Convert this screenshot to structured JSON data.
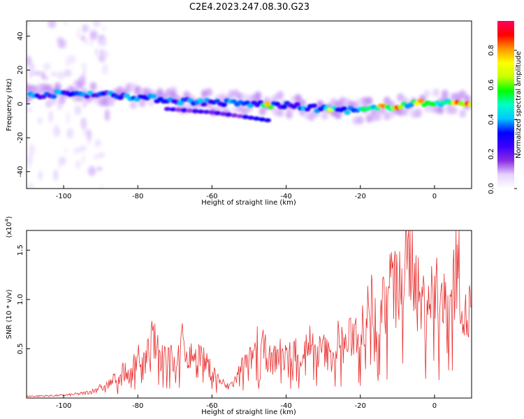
{
  "title": "C2E4.2023.247.08.30.G23",
  "chart_data": [
    {
      "type": "heatmap",
      "xlabel": "Height of straight line (km)",
      "ylabel": "Frequency (Hz)",
      "xlim": [
        -110,
        10
      ],
      "ylim": [
        -50,
        49
      ],
      "x_ticks": [
        -100,
        -80,
        -60,
        -40,
        -20,
        0
      ],
      "y_ticks": [
        -40,
        -20,
        0,
        20,
        40
      ],
      "colorbar": {
        "label": "Normalized spectral amplitude",
        "range": [
          0,
          0.97
        ],
        "ticks": [
          "0.0",
          "0.2",
          "0.4",
          "0.6",
          "0.8"
        ],
        "colormap": [
          "#ffffff",
          "#e6d2ff",
          "#8a2be2",
          "#3c00ff",
          "#0000ff",
          "#00c8ff",
          "#00ffc8",
          "#00ff00",
          "#c8ff00",
          "#ffff00",
          "#ff9600",
          "#ff0000",
          "#ff0060"
        ]
      },
      "ridge_center": {
        "x": [
          -110,
          -100,
          -90,
          -80,
          -70,
          -60,
          -50,
          -40,
          -30,
          -20,
          -10,
          0,
          10
        ],
        "y": [
          5,
          6,
          6,
          4,
          2,
          1,
          0,
          -1,
          -3,
          -4,
          -1,
          1,
          0
        ]
      },
      "ridge_intensity_peaks": [
        {
          "x": -45,
          "y": -2,
          "value": 0.8
        },
        {
          "x": -28,
          "y": -4,
          "value": 0.7
        },
        {
          "x": -14,
          "y": -1,
          "value": 0.95
        },
        {
          "x": -10,
          "y": 0,
          "value": 0.9
        },
        {
          "x": -4,
          "y": 1,
          "value": 0.9
        },
        {
          "x": 6,
          "y": 0,
          "value": 0.97
        },
        {
          "x": 9,
          "y": 0,
          "value": 0.95
        }
      ],
      "secondary_branch": {
        "x": [
          -72,
          -60,
          -50,
          -44
        ],
        "y": [
          -3,
          -5,
          -8,
          -10
        ]
      }
    },
    {
      "type": "line",
      "xlabel": "Height of straight line (km)",
      "ylabel": "SNR (10 * v/v)",
      "ylabel_multiplier": "(x10^4)",
      "multiplier_base": "(x10",
      "multiplier_exp": "4",
      "multiplier_close": ")",
      "xlim": [
        -110,
        10
      ],
      "ylim": [
        0,
        1.7
      ],
      "x_ticks": [
        -100,
        -80,
        -60,
        -40,
        -20,
        0
      ],
      "y_ticks": [
        "0.5",
        "1.0",
        "1.5"
      ],
      "color": "#e83030",
      "series": [
        {
          "x": [
            -110,
            -100,
            -95,
            -92,
            -90,
            -88,
            -86,
            -84,
            -82,
            -80,
            -78,
            -76,
            -74,
            -72,
            -70,
            -68,
            -66,
            -64,
            -62,
            -60,
            -58,
            -56,
            -54,
            -52,
            -50,
            -48,
            -46,
            -44,
            -42,
            -40,
            -38,
            -36,
            -34,
            -32,
            -30,
            -28,
            -26,
            -24,
            -22,
            -20,
            -18,
            -16,
            -14,
            -12,
            -10,
            -8,
            -6,
            -5,
            -4,
            -2,
            0,
            2,
            4,
            6,
            7,
            8,
            9,
            10
          ],
          "y": [
            0.02,
            0.03,
            0.05,
            0.08,
            0.12,
            0.15,
            0.22,
            0.3,
            0.25,
            0.5,
            0.4,
            0.68,
            0.45,
            0.55,
            0.35,
            0.62,
            0.45,
            0.55,
            0.4,
            0.3,
            0.2,
            0.12,
            0.18,
            0.35,
            0.4,
            0.6,
            0.55,
            0.4,
            0.5,
            0.45,
            0.55,
            0.45,
            0.65,
            0.5,
            0.55,
            0.45,
            0.65,
            0.58,
            0.72,
            0.8,
            0.95,
            1.1,
            1.05,
            1.3,
            1.2,
            1.4,
            1.68,
            1.3,
            1.05,
            1.1,
            1.2,
            1.05,
            1.0,
            1.55,
            1.35,
            0.9,
            0.85,
            1.2
          ]
        }
      ]
    }
  ]
}
